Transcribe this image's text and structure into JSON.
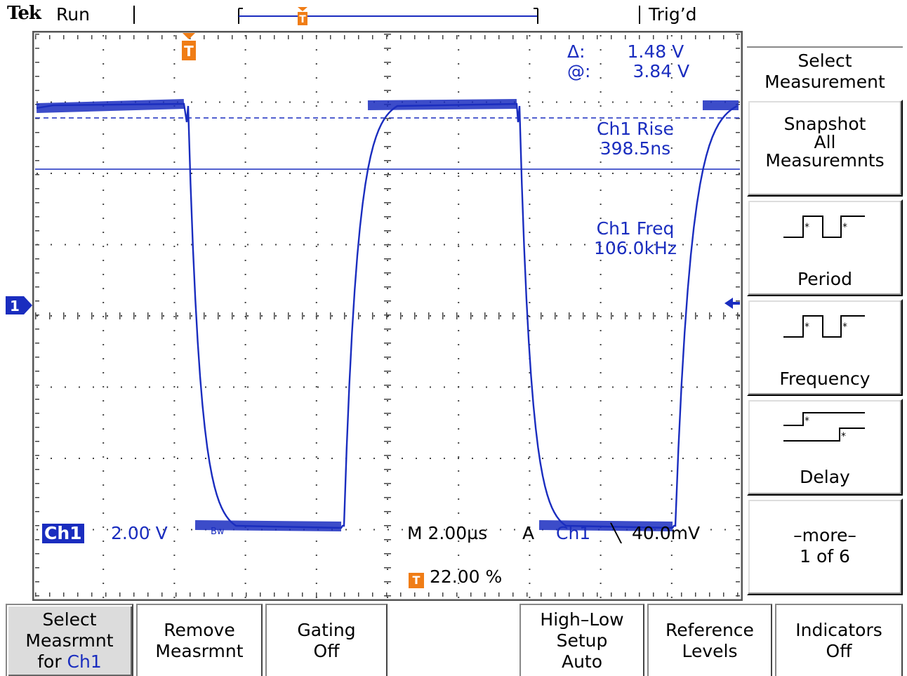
{
  "status": {
    "brand": "Tek",
    "run_state": "Run",
    "trigger_state": "Trig’d"
  },
  "readouts": {
    "cursor_delta_label": "Δ:",
    "cursor_delta_value": "1.48 V",
    "cursor_at_label": "@:",
    "cursor_at_value": "3.84 V",
    "meas1_label": "Ch1 Rise",
    "meas1_value": "398.5ns",
    "meas2_label": "Ch1 Freq",
    "meas2_value": "106.0kHz"
  },
  "channel": {
    "badge": "Ch1",
    "scale": "2.00 V",
    "bw_mark": "Bw",
    "marker": "1"
  },
  "timebase": {
    "main": "M 2.00µs",
    "trigger_mode": "A",
    "trigger_source": "Ch1",
    "trigger_slope": "╲",
    "trigger_level": "40.0mV",
    "trigger_marker": "T",
    "trigger_position": "22.00 %"
  },
  "side_menu": {
    "title_line1": "Select",
    "title_line2": "Measurement",
    "items": [
      {
        "lines": [
          "Snapshot",
          "All",
          "Measuremnts"
        ]
      },
      {
        "icon": "period-icon",
        "label": "Period"
      },
      {
        "icon": "frequency-icon",
        "label": "Frequency"
      },
      {
        "icon": "delay-icon",
        "label": "Delay"
      },
      {
        "lines": [
          "–more–",
          "1 of 6"
        ]
      }
    ]
  },
  "bottom_menu": {
    "b1_line1": "Select",
    "b1_line2": "Measrmnt",
    "b1_line3_prefix": "for ",
    "b1_line3_ch": "Ch1",
    "b2_line1": "Remove",
    "b2_line2": "Measrmnt",
    "b3_line1": "Gating",
    "b3_line2": "Off",
    "b5_line1": "High–Low",
    "b5_line2": "Setup",
    "b5_line3": "Auto",
    "b6_line1": "Reference",
    "b6_line2": "Levels",
    "b7_line1": "Indicators",
    "b7_line2": "Off"
  },
  "colors": {
    "trace": "#1a2dbf",
    "trigger_marker": "#f07d16"
  }
}
